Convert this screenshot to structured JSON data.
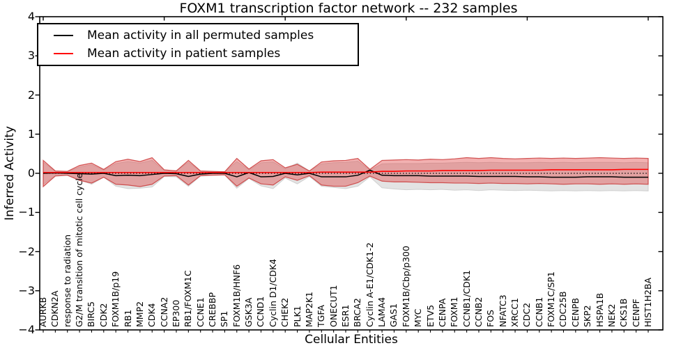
{
  "title": "FOXM1 transcription factor network -- 232 samples",
  "axes": {
    "xlabel": "Cellular Entities",
    "ylabel": "Inferred Activity",
    "yticks": [
      "4",
      "3",
      "2",
      "1",
      "0",
      "−1",
      "−2",
      "−3",
      "−4"
    ],
    "ylim": [
      -4,
      4
    ]
  },
  "legend": {
    "items": [
      {
        "label": "Mean activity in all permuted samples",
        "color": "#000000"
      },
      {
        "label": "Mean activity in patient samples",
        "color": "#ff0000"
      }
    ]
  },
  "colors": {
    "permuted_line": "#000000",
    "patient_line": "#ff0000",
    "permuted_band_fill": "#e3e3e3",
    "permuted_band_edge": "#cfcfcf",
    "patient_band_fill": "rgba(225,70,70,0.42)",
    "patient_band_edge": "rgba(200,50,50,0.8)",
    "zero_line": "#000000",
    "frame": "#000000"
  },
  "chart_data": {
    "type": "area",
    "title": "FOXM1 transcription factor network -- 232 samples",
    "xlabel": "Cellular Entities",
    "ylabel": "Inferred Activity",
    "ylim": [
      -4,
      4
    ],
    "grid": false,
    "legend_position": "upper left",
    "categories": [
      "AURKB",
      "CDKN2A",
      "response to radiation",
      "G2/M transition of mitotic cell cycle",
      "BIRC5",
      "CDK2",
      "FOXM1B/p19",
      "RB1",
      "MMP2",
      "CDK4",
      "CCNA2",
      "EP300",
      "RB1/FOXM1C",
      "CCNE1",
      "CREBBP",
      "SP1",
      "FOXM1B/HNF6",
      "GSK3A",
      "CCND1",
      "Cyclin D1/CDK4",
      "CHEK2",
      "PLK1",
      "MAP2K1",
      "TGFA",
      "ONECUT1",
      "ESR1",
      "BRCA2",
      "Cyclin A-E1/CDK1-2",
      "LAMA4",
      "GAS1",
      "FOXM1B/Cbp/p300",
      "MYC",
      "ETV5",
      "CENPA",
      "FOXM1",
      "CCNB1/CDK1",
      "CCNB2",
      "FOS",
      "NFATC3",
      "XRCC1",
      "CDC2",
      "CCNB1",
      "FOXM1C/SP1",
      "CDC25B",
      "CENPB",
      "SKP2",
      "HSPA1B",
      "NEK2",
      "CKS1B",
      "CENPF",
      "HIST1H2BA"
    ],
    "series": [
      {
        "name": "permuted-sample-range",
        "kind": "band",
        "upper": [
          0.28,
          0.05,
          0.04,
          0.16,
          0.22,
          0.08,
          0.25,
          0.3,
          0.26,
          0.33,
          0.07,
          0.07,
          0.28,
          0.05,
          0.04,
          0.04,
          0.3,
          0.09,
          0.27,
          0.29,
          0.11,
          0.26,
          0.06,
          0.24,
          0.27,
          0.28,
          0.31,
          0.08,
          0.24,
          0.25,
          0.25,
          0.25,
          0.26,
          0.26,
          0.27,
          0.28,
          0.27,
          0.28,
          0.27,
          0.27,
          0.27,
          0.28,
          0.27,
          0.28,
          0.27,
          0.28,
          0.28,
          0.28,
          0.27,
          0.28,
          0.27
        ],
        "lower": [
          -0.28,
          -0.06,
          -0.05,
          -0.16,
          -0.28,
          -0.1,
          -0.33,
          -0.39,
          -0.38,
          -0.35,
          -0.08,
          -0.09,
          -0.33,
          -0.07,
          -0.05,
          -0.04,
          -0.38,
          -0.13,
          -0.32,
          -0.39,
          -0.12,
          -0.27,
          -0.08,
          -0.33,
          -0.36,
          -0.39,
          -0.33,
          -0.09,
          -0.37,
          -0.4,
          -0.42,
          -0.41,
          -0.42,
          -0.41,
          -0.43,
          -0.42,
          -0.44,
          -0.42,
          -0.43,
          -0.44,
          -0.43,
          -0.44,
          -0.45,
          -0.44,
          -0.45,
          -0.44,
          -0.45,
          -0.44,
          -0.45,
          -0.44,
          -0.45
        ]
      },
      {
        "name": "patient-sample-range",
        "kind": "band",
        "upper": [
          0.33,
          0.06,
          0.05,
          0.2,
          0.26,
          0.1,
          0.3,
          0.36,
          0.3,
          0.4,
          0.09,
          0.06,
          0.33,
          0.06,
          0.05,
          0.04,
          0.38,
          0.11,
          0.32,
          0.35,
          0.14,
          0.23,
          0.06,
          0.29,
          0.32,
          0.33,
          0.38,
          0.1,
          0.33,
          0.34,
          0.35,
          0.34,
          0.36,
          0.35,
          0.37,
          0.4,
          0.38,
          0.4,
          0.38,
          0.37,
          0.38,
          0.39,
          0.38,
          0.39,
          0.38,
          0.39,
          0.4,
          0.39,
          0.38,
          0.39,
          0.38
        ],
        "lower": [
          -0.34,
          -0.07,
          -0.05,
          -0.18,
          -0.25,
          -0.1,
          -0.28,
          -0.3,
          -0.34,
          -0.28,
          -0.07,
          -0.06,
          -0.3,
          -0.06,
          -0.05,
          -0.04,
          -0.33,
          -0.12,
          -0.27,
          -0.3,
          -0.09,
          -0.18,
          -0.06,
          -0.3,
          -0.33,
          -0.33,
          -0.24,
          -0.07,
          -0.2,
          -0.22,
          -0.22,
          -0.23,
          -0.24,
          -0.24,
          -0.25,
          -0.25,
          -0.26,
          -0.25,
          -0.26,
          -0.26,
          -0.27,
          -0.26,
          -0.27,
          -0.28,
          -0.27,
          -0.27,
          -0.28,
          -0.27,
          -0.28,
          -0.27,
          -0.28
        ]
      },
      {
        "name": "Mean activity in all permuted samples",
        "kind": "line",
        "values": [
          0.0,
          0.01,
          0.0,
          -0.01,
          -0.02,
          0.0,
          -0.06,
          -0.05,
          -0.06,
          -0.03,
          0.0,
          -0.01,
          -0.08,
          -0.02,
          0.0,
          0.0,
          -0.09,
          0.02,
          -0.09,
          -0.08,
          0.0,
          -0.04,
          0.0,
          -0.09,
          -0.09,
          -0.09,
          -0.05,
          0.08,
          -0.05,
          -0.06,
          -0.06,
          -0.06,
          -0.07,
          -0.07,
          -0.07,
          -0.07,
          -0.08,
          -0.08,
          -0.08,
          -0.08,
          -0.09,
          -0.09,
          -0.1,
          -0.1,
          -0.1,
          -0.09,
          -0.09,
          -0.09,
          -0.1,
          -0.1,
          -0.1
        ]
      },
      {
        "name": "Mean activity in patient samples",
        "kind": "line",
        "values": [
          0.02,
          0.02,
          0.02,
          0.02,
          0.02,
          0.02,
          0.02,
          0.02,
          0.02,
          0.02,
          0.02,
          0.02,
          0.02,
          0.02,
          0.02,
          0.02,
          0.02,
          0.02,
          0.02,
          0.02,
          0.02,
          0.02,
          0.02,
          0.03,
          0.03,
          0.03,
          0.03,
          0.03,
          0.05,
          0.05,
          0.06,
          0.06,
          0.06,
          0.07,
          0.07,
          0.07,
          0.07,
          0.08,
          0.08,
          0.08,
          0.08,
          0.08,
          0.09,
          0.09,
          0.09,
          0.09,
          0.09,
          0.09,
          0.1,
          0.1,
          0.1
        ]
      },
      {
        "name": "zero-baseline",
        "kind": "reference",
        "value": 0,
        "style": "dotted"
      }
    ]
  }
}
